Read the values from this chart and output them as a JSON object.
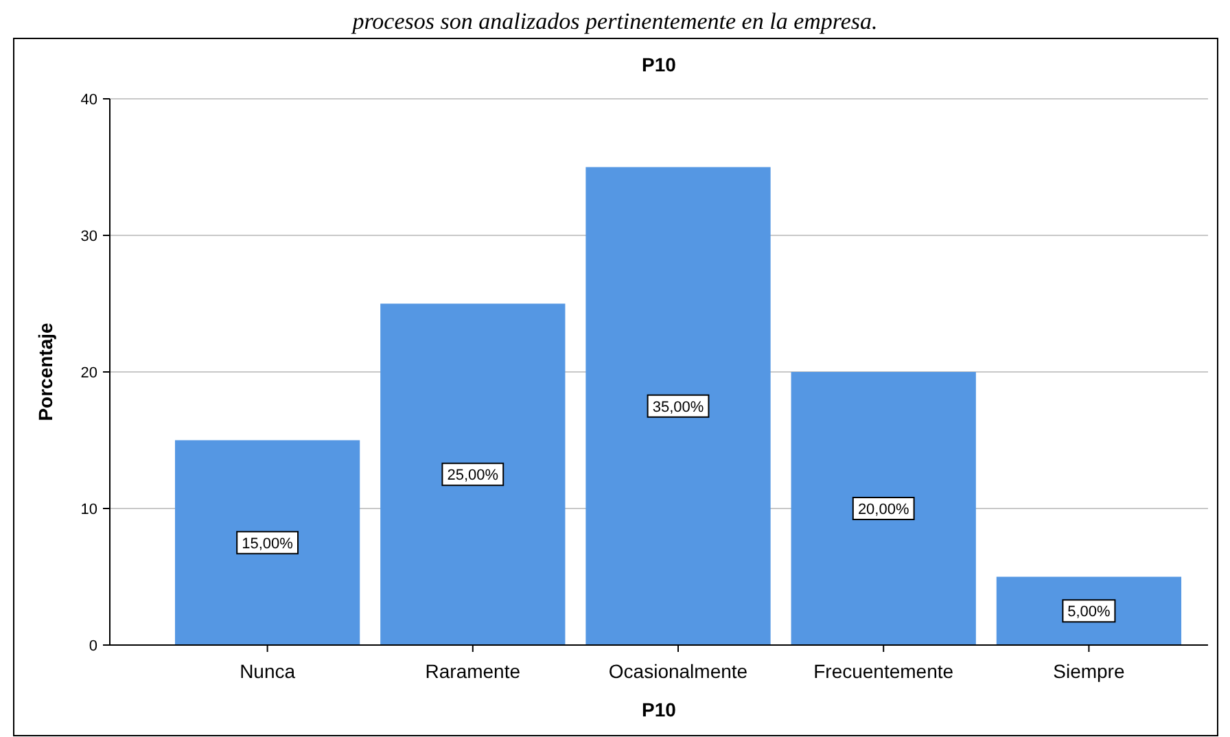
{
  "chart_data": {
    "type": "bar",
    "title": "P10",
    "xlabel": "P10",
    "ylabel": "Porcentaje",
    "annotations": [
      "procesos son analizados pertinentemente en la empresa."
    ],
    "categories": [
      "Nunca",
      "Raramente",
      "Ocasionalmente",
      "Frecuentemente",
      "Siempre"
    ],
    "values": [
      15,
      25,
      35,
      20,
      5
    ],
    "color": "#5597e3",
    "value_labels": [
      "15,00%",
      "25,00%",
      "35,00%",
      "20,00%",
      "5,00%"
    ],
    "ylim": [
      0,
      40
    ],
    "yticks": [
      0,
      10,
      20,
      30,
      40
    ],
    "grid": "y"
  }
}
